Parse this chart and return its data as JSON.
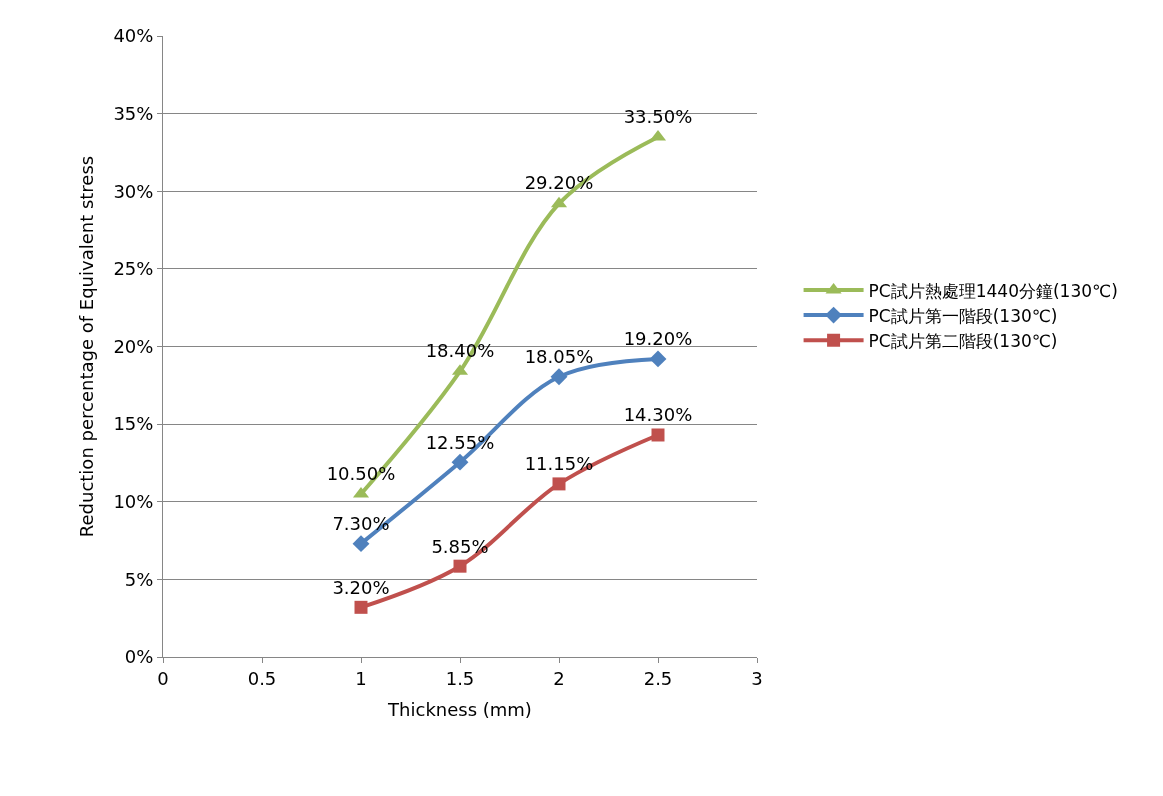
{
  "chart_data": {
    "type": "line",
    "xlabel": "Thickness (mm)",
    "ylabel": "Reduction percentage of Equivalent stress",
    "x": [
      1,
      1.5,
      2,
      2.5
    ],
    "series": [
      {
        "name": "PC試片熱處理1440分鐘(130℃)",
        "color": "#9bbb59",
        "marker": "triangle",
        "values": [
          10.5,
          18.4,
          29.2,
          33.5
        ],
        "value_labels": [
          "10.50%",
          "18.40%",
          "29.20%",
          "33.50%"
        ]
      },
      {
        "name": "PC試片第一階段(130℃)",
        "color": "#4f81bd",
        "marker": "diamond",
        "values": [
          7.3,
          12.55,
          18.05,
          19.2
        ],
        "value_labels": [
          "7.30%",
          "12.55%",
          "18.05%",
          "19.20%"
        ]
      },
      {
        "name": "PC試片第二階段(130℃)",
        "color": "#c0504d",
        "marker": "square",
        "values": [
          3.2,
          5.85,
          11.15,
          14.3
        ],
        "value_labels": [
          "3.20%",
          "5.85%",
          "11.15%",
          "14.30%"
        ]
      }
    ],
    "xlim": [
      0,
      3
    ],
    "xticks": [
      0,
      0.5,
      1,
      1.5,
      2,
      2.5,
      3
    ],
    "ylim": [
      0,
      40
    ],
    "yticks": [
      {
        "value": 0,
        "label": "0%"
      },
      {
        "value": 5,
        "label": "5%"
      },
      {
        "value": 10,
        "label": "10%"
      },
      {
        "value": 15,
        "label": "15%"
      },
      {
        "value": 20,
        "label": "20%"
      },
      {
        "value": 25,
        "label": "25%"
      },
      {
        "value": 30,
        "label": "30%"
      },
      {
        "value": 35,
        "label": "35%"
      },
      {
        "value": 40,
        "label": "40%"
      }
    ],
    "grid": "y",
    "legend": "right",
    "line_style": "solid"
  }
}
